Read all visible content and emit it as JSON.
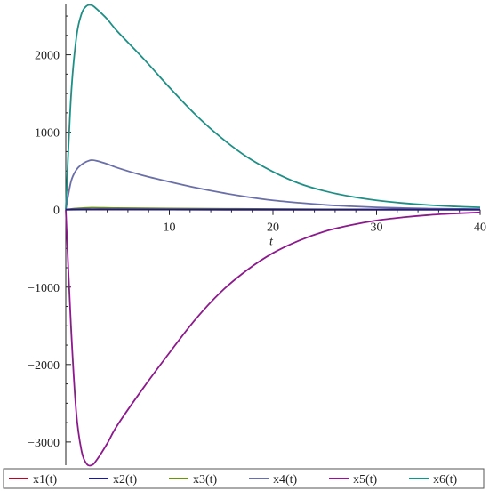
{
  "chart_data": {
    "type": "line",
    "xlabel": "t",
    "ylabel": "",
    "xlim": [
      0,
      40
    ],
    "ylim": [
      -3300,
      2650
    ],
    "x_ticks": [
      10,
      20,
      30,
      40
    ],
    "y_ticks": [
      -3000,
      -2000,
      -1000,
      0,
      1000,
      2000
    ],
    "x_tick_labels": [
      "10",
      "20",
      "30",
      "40"
    ],
    "y_tick_labels": [
      "−3000",
      "−2000",
      "−1000",
      "0",
      "1000",
      "2000"
    ],
    "grid": false,
    "legend_position": "bottom",
    "series": [
      {
        "name": "x1(t)",
        "color": "#a0102a",
        "x": [
          0,
          2.5,
          5,
          10,
          20,
          30,
          40
        ],
        "y": [
          0,
          3,
          2,
          1,
          0,
          0,
          0
        ]
      },
      {
        "name": "x2(t)",
        "color": "#1a1a8c",
        "x": [
          0,
          2.5,
          5,
          10,
          20,
          30,
          40
        ],
        "y": [
          0,
          2,
          2,
          1,
          0,
          0,
          0
        ]
      },
      {
        "name": "x3(t)",
        "color": "#6b8e23",
        "x": [
          0,
          1,
          2.5,
          5,
          10,
          20,
          30,
          40
        ],
        "y": [
          0,
          15,
          25,
          20,
          15,
          8,
          3,
          1
        ]
      },
      {
        "name": "x4(t)",
        "color": "#6a6fa8",
        "x": [
          0,
          0.5,
          1,
          1.5,
          2,
          2.5,
          3,
          4,
          5,
          7.5,
          10,
          12.5,
          15,
          17.5,
          20,
          22.5,
          25,
          27.5,
          30,
          32.5,
          35,
          37.5,
          40
        ],
        "y": [
          0,
          360,
          510,
          580,
          620,
          640,
          630,
          590,
          540,
          440,
          360,
          285,
          220,
          165,
          120,
          88,
          62,
          44,
          30,
          21,
          14,
          10,
          7
        ]
      },
      {
        "name": "x5(t)",
        "color": "#8b1a8b",
        "x": [
          0,
          0.5,
          1,
          1.5,
          2,
          2.5,
          3,
          4,
          5,
          7.5,
          10,
          12.5,
          15,
          17.5,
          20,
          22.5,
          25,
          27.5,
          30,
          32.5,
          35,
          37.5,
          40
        ],
        "y": [
          0,
          -1500,
          -2600,
          -3100,
          -3280,
          -3300,
          -3230,
          -3020,
          -2780,
          -2300,
          -1850,
          -1420,
          -1060,
          -780,
          -560,
          -400,
          -280,
          -200,
          -140,
          -100,
          -70,
          -50,
          -35
        ]
      },
      {
        "name": "x6(t)",
        "color": "#1f8f86",
        "x": [
          0,
          0.5,
          1,
          1.5,
          2,
          2.5,
          3,
          4,
          5,
          7.5,
          10,
          12.5,
          15,
          17.5,
          20,
          22.5,
          25,
          27.5,
          30,
          32.5,
          35,
          37.5,
          40
        ],
        "y": [
          0,
          1450,
          2200,
          2520,
          2630,
          2640,
          2590,
          2460,
          2300,
          1950,
          1580,
          1230,
          930,
          680,
          490,
          340,
          240,
          170,
          120,
          85,
          60,
          42,
          30
        ]
      }
    ]
  }
}
